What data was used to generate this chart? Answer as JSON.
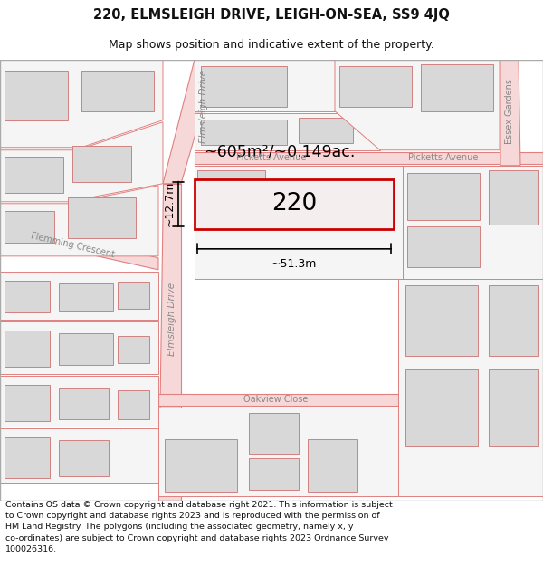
{
  "title": "220, ELMSLEIGH DRIVE, LEIGH-ON-SEA, SS9 4JQ",
  "subtitle": "Map shows position and indicative extent of the property.",
  "footer": "Contains OS data © Crown copyright and database right 2021. This information is subject\nto Crown copyright and database rights 2023 and is reproduced with the permission of\nHM Land Registry. The polygons (including the associated geometry, namely x, y\nco-ordinates) are subject to Crown copyright and database rights 2023 Ordnance Survey\n100026316.",
  "road_fill": "#f7d8d8",
  "road_edge": "#e08080",
  "plot_fill": "#f5f5f5",
  "plot_edge": "#e08080",
  "building_fill": "#d8d8d8",
  "building_edge": "#d08080",
  "highlight_fill": "#f5eeee",
  "highlight_edge": "#cc0000",
  "text_color": "#888888",
  "area_label": "~605m²/~0.149ac.",
  "property_label": "220",
  "width_label": "~51.3m",
  "height_label": "~12.7m"
}
